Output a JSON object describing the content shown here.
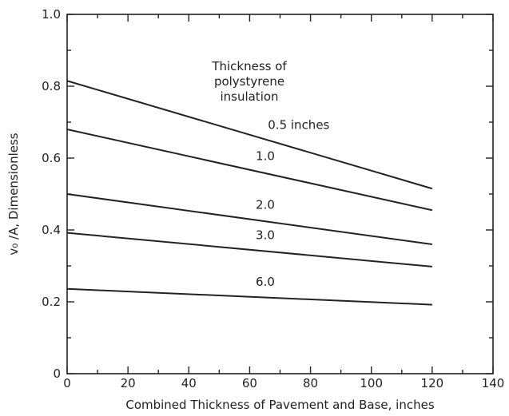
{
  "chart_data": {
    "type": "line",
    "title": "",
    "xlabel": "Combined Thickness of Pavement and Base, inches",
    "ylabel": "v₀ /A,  Dimensionless",
    "xlim": [
      0,
      140
    ],
    "ylim": [
      0,
      1.0
    ],
    "x_ticks": [
      0,
      20,
      40,
      60,
      80,
      100,
      120,
      140
    ],
    "x_tick_labels": [
      "0",
      "20",
      "40",
      "60",
      "80",
      "100",
      "120",
      "140"
    ],
    "y_ticks": [
      0,
      0.2,
      0.4,
      0.6,
      0.8,
      1.0
    ],
    "y_tick_labels": [
      "0",
      "0.2",
      "0.4",
      "0.6",
      "0.8",
      "1.0"
    ],
    "grid": false,
    "legend_title": "Thickness of\npolystyrene\ninsulation",
    "series": [
      {
        "name": "0.5 inches",
        "x": [
          0,
          120
        ],
        "y": [
          0.815,
          0.515
        ]
      },
      {
        "name": "1.0",
        "x": [
          0,
          120
        ],
        "y": [
          0.68,
          0.455
        ]
      },
      {
        "name": "2.0",
        "x": [
          0,
          120
        ],
        "y": [
          0.5,
          0.36
        ]
      },
      {
        "name": "3.0",
        "x": [
          0,
          120
        ],
        "y": [
          0.392,
          0.298
        ]
      },
      {
        "name": "6.0",
        "x": [
          0,
          120
        ],
        "y": [
          0.236,
          0.192
        ]
      }
    ]
  }
}
